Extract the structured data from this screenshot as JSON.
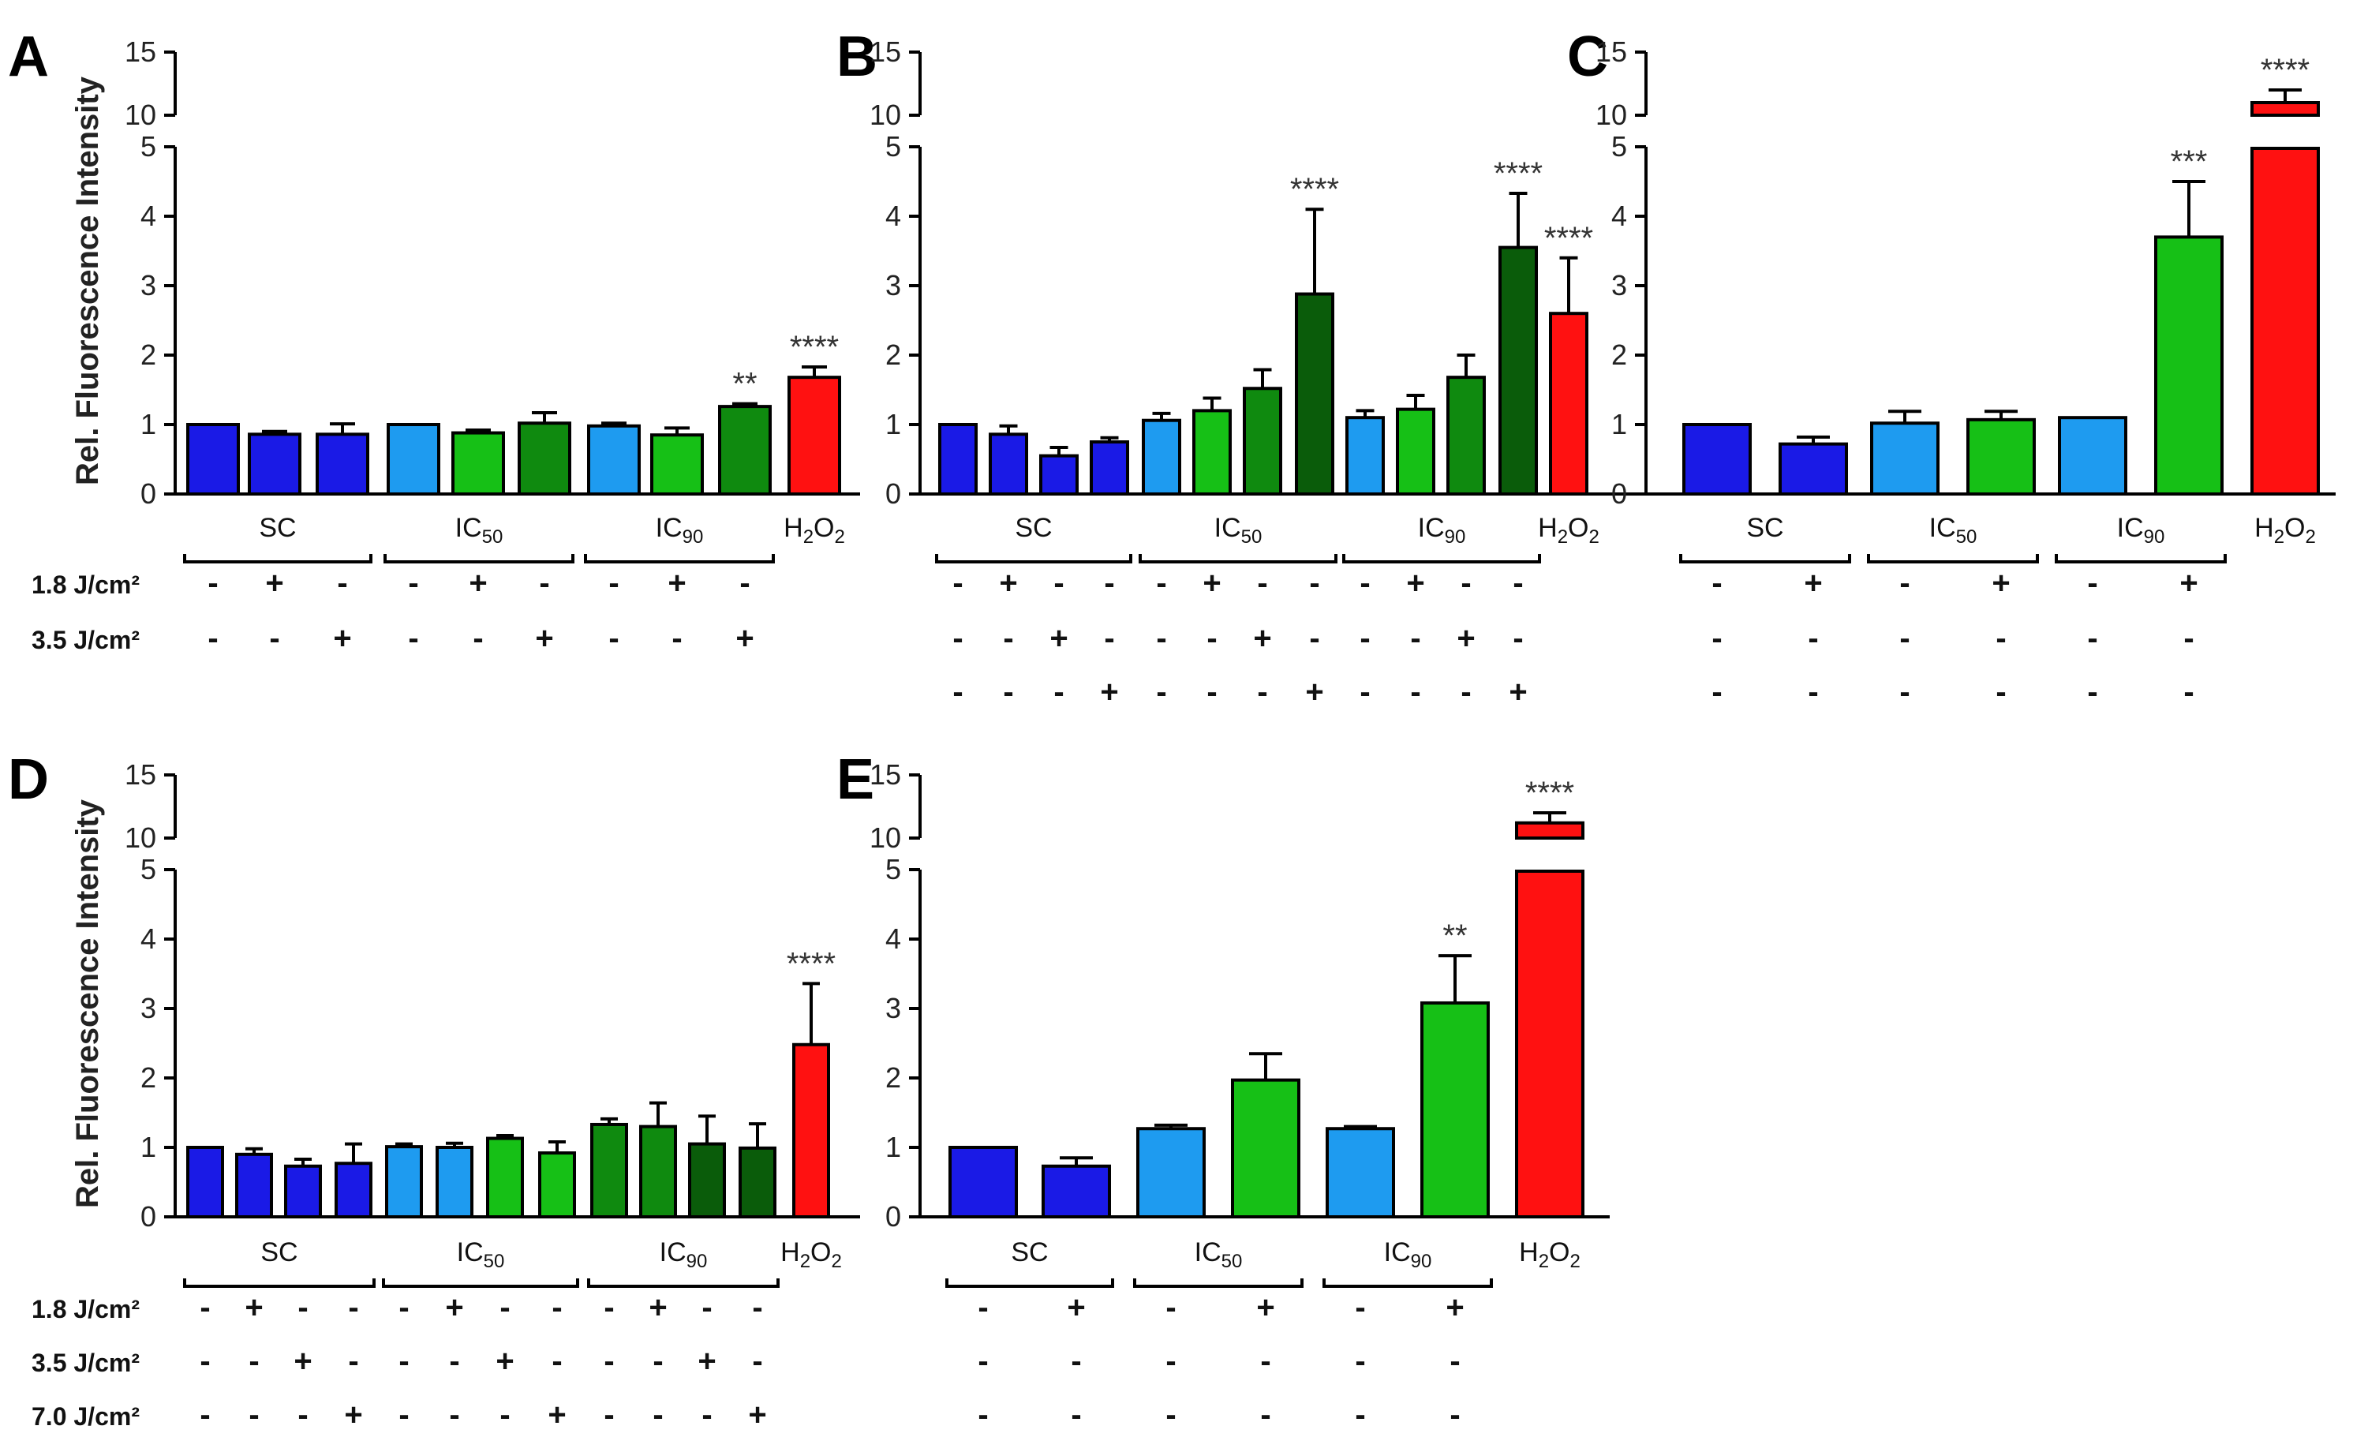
{
  "colors": {
    "sc": "#1a1ae6",
    "ic_light": "#1e9bf0",
    "green": "#16c016",
    "mid_green": "#0f8a0f",
    "dark_green": "#0a5c0a",
    "h2o2": "#ff1111"
  },
  "dose_labels": [
    "1.8 J/cm²",
    "3.5 J/cm²",
    "7.0 J/cm²"
  ],
  "chart_data": [
    {
      "panel": "A",
      "type": "bar",
      "ylabel": "Rel. Fluorescence Intensity",
      "ylim": [
        0,
        15
      ],
      "axis_break": [
        5,
        10
      ],
      "lower_ticks": [
        "0",
        "1",
        "2",
        "3",
        "4",
        "5"
      ],
      "upper_ticks": [
        "10",
        "15"
      ],
      "show_dose_labels": true,
      "groups": [
        {
          "label": "SC",
          "sub": ""
        },
        {
          "label": "IC",
          "sub": "50"
        },
        {
          "label": "IC",
          "sub": "90"
        },
        {
          "label": "H",
          "sub": "2",
          "label2": "O",
          "sub2": "2"
        }
      ],
      "bars": [
        {
          "group": 0,
          "value": 1.0,
          "error": 0.0,
          "color": "sc",
          "signs": [
            "-",
            "-"
          ]
        },
        {
          "group": 0,
          "value": 0.86,
          "error": 0.04,
          "color": "sc",
          "signs": [
            "+",
            "-"
          ]
        },
        {
          "group": 0,
          "value": 0.86,
          "error": 0.15,
          "color": "sc",
          "signs": [
            "-",
            "+"
          ]
        },
        {
          "group": 1,
          "value": 1.0,
          "error": 0.0,
          "color": "ic_light",
          "signs": [
            "-",
            "-"
          ]
        },
        {
          "group": 1,
          "value": 0.88,
          "error": 0.04,
          "color": "green",
          "signs": [
            "+",
            "-"
          ]
        },
        {
          "group": 1,
          "value": 1.02,
          "error": 0.15,
          "color": "mid_green",
          "signs": [
            "-",
            "+"
          ]
        },
        {
          "group": 2,
          "value": 0.98,
          "error": 0.04,
          "color": "ic_light",
          "signs": [
            "-",
            "-"
          ]
        },
        {
          "group": 2,
          "value": 0.85,
          "error": 0.1,
          "color": "green",
          "signs": [
            "+",
            "-"
          ]
        },
        {
          "group": 2,
          "value": 1.26,
          "error": 0.04,
          "color": "mid_green",
          "signs": [
            "-",
            "+"
          ],
          "sig": "**"
        },
        {
          "group": 3,
          "value": 1.68,
          "error": 0.15,
          "color": "h2o2",
          "sig": "****"
        }
      ]
    },
    {
      "panel": "B",
      "type": "bar",
      "ylabel": "",
      "ylim": [
        0,
        15
      ],
      "axis_break": [
        5,
        10
      ],
      "lower_ticks": [
        "0",
        "1",
        "2",
        "3",
        "4",
        "5"
      ],
      "upper_ticks": [
        "10",
        "15"
      ],
      "show_dose_labels": false,
      "groups": [
        {
          "label": "SC",
          "sub": ""
        },
        {
          "label": "IC",
          "sub": "50"
        },
        {
          "label": "IC",
          "sub": "90"
        },
        {
          "label": "H",
          "sub": "2",
          "label2": "O",
          "sub2": "2"
        }
      ],
      "bars": [
        {
          "group": 0,
          "value": 1.0,
          "error": 0.0,
          "color": "sc",
          "signs": [
            "-",
            "-",
            "-"
          ]
        },
        {
          "group": 0,
          "value": 0.86,
          "error": 0.12,
          "color": "sc",
          "signs": [
            "+",
            "-",
            "-"
          ]
        },
        {
          "group": 0,
          "value": 0.55,
          "error": 0.12,
          "color": "sc",
          "signs": [
            "-",
            "+",
            "-"
          ]
        },
        {
          "group": 0,
          "value": 0.75,
          "error": 0.06,
          "color": "sc",
          "signs": [
            "-",
            "-",
            "+"
          ]
        },
        {
          "group": 1,
          "value": 1.06,
          "error": 0.1,
          "color": "ic_light",
          "signs": [
            "-",
            "-",
            "-"
          ]
        },
        {
          "group": 1,
          "value": 1.2,
          "error": 0.18,
          "color": "green",
          "signs": [
            "+",
            "-",
            "-"
          ]
        },
        {
          "group": 1,
          "value": 1.52,
          "error": 0.27,
          "color": "mid_green",
          "signs": [
            "-",
            "+",
            "-"
          ]
        },
        {
          "group": 1,
          "value": 2.88,
          "error": 1.22,
          "color": "dark_green",
          "signs": [
            "-",
            "-",
            "+"
          ],
          "sig": "****"
        },
        {
          "group": 2,
          "value": 1.1,
          "error": 0.1,
          "color": "ic_light",
          "signs": [
            "-",
            "-",
            "-"
          ]
        },
        {
          "group": 2,
          "value": 1.22,
          "error": 0.2,
          "color": "green",
          "signs": [
            "+",
            "-",
            "-"
          ]
        },
        {
          "group": 2,
          "value": 1.68,
          "error": 0.32,
          "color": "mid_green",
          "signs": [
            "-",
            "+",
            "-"
          ]
        },
        {
          "group": 2,
          "value": 3.55,
          "error": 0.78,
          "color": "dark_green",
          "signs": [
            "-",
            "-",
            "+"
          ],
          "sig": "****"
        },
        {
          "group": 3,
          "value": 2.6,
          "error": 0.8,
          "color": "h2o2",
          "sig": "****"
        }
      ]
    },
    {
      "panel": "C",
      "type": "bar",
      "ylabel": "",
      "ylim": [
        0,
        15
      ],
      "axis_break": [
        5,
        10
      ],
      "lower_ticks": [
        "0",
        "1",
        "2",
        "3",
        "4",
        "5"
      ],
      "upper_ticks": [
        "10",
        "15"
      ],
      "show_dose_labels": false,
      "groups": [
        {
          "label": "SC",
          "sub": ""
        },
        {
          "label": "IC",
          "sub": "50"
        },
        {
          "label": "IC",
          "sub": "90"
        },
        {
          "label": "H",
          "sub": "2",
          "label2": "O",
          "sub2": "2"
        }
      ],
      "bars": [
        {
          "group": 0,
          "value": 1.0,
          "error": 0.0,
          "color": "sc",
          "signs": [
            "-",
            "-",
            "-"
          ]
        },
        {
          "group": 0,
          "value": 0.72,
          "error": 0.1,
          "color": "sc",
          "signs": [
            "+",
            "-",
            "-"
          ]
        },
        {
          "group": 1,
          "value": 1.02,
          "error": 0.17,
          "color": "ic_light",
          "signs": [
            "-",
            "-",
            "-"
          ]
        },
        {
          "group": 1,
          "value": 1.07,
          "error": 0.12,
          "color": "green",
          "signs": [
            "+",
            "-",
            "-"
          ]
        },
        {
          "group": 2,
          "value": 1.1,
          "error": 0.0,
          "color": "ic_light",
          "signs": [
            "-",
            "-",
            "-"
          ]
        },
        {
          "group": 2,
          "value": 3.7,
          "error": 0.8,
          "color": "green",
          "signs": [
            "+",
            "-",
            "-"
          ],
          "sig": "***"
        },
        {
          "group": 3,
          "value": 11.0,
          "error": 1.0,
          "color": "h2o2",
          "sig": "****"
        }
      ]
    },
    {
      "panel": "D",
      "type": "bar",
      "ylabel": "Rel. Fluorescence Intensity",
      "ylim": [
        0,
        15
      ],
      "axis_break": [
        5,
        10
      ],
      "lower_ticks": [
        "0",
        "1",
        "2",
        "3",
        "4",
        "5"
      ],
      "upper_ticks": [
        "10",
        "15"
      ],
      "show_dose_labels": true,
      "groups": [
        {
          "label": "SC",
          "sub": ""
        },
        {
          "label": "IC",
          "sub": "50"
        },
        {
          "label": "IC",
          "sub": "90"
        },
        {
          "label": "H",
          "sub": "2",
          "label2": "O",
          "sub2": "2"
        }
      ],
      "bars": [
        {
          "group": 0,
          "value": 1.0,
          "error": 0.0,
          "color": "sc",
          "signs": [
            "-",
            "-",
            "-"
          ]
        },
        {
          "group": 0,
          "value": 0.9,
          "error": 0.08,
          "color": "sc",
          "signs": [
            "+",
            "-",
            "-"
          ]
        },
        {
          "group": 0,
          "value": 0.73,
          "error": 0.1,
          "color": "sc",
          "signs": [
            "-",
            "+",
            "-"
          ]
        },
        {
          "group": 0,
          "value": 0.77,
          "error": 0.28,
          "color": "sc",
          "signs": [
            "-",
            "-",
            "+"
          ]
        },
        {
          "group": 1,
          "value": 1.01,
          "error": 0.04,
          "color": "ic_light",
          "signs": [
            "-",
            "-",
            "-"
          ]
        },
        {
          "group": 1,
          "value": 1.0,
          "error": 0.06,
          "color": "ic_light",
          "signs": [
            "+",
            "-",
            "-"
          ]
        },
        {
          "group": 1,
          "value": 1.13,
          "error": 0.04,
          "color": "green",
          "signs": [
            "-",
            "+",
            "-"
          ]
        },
        {
          "group": 1,
          "value": 0.92,
          "error": 0.16,
          "color": "green",
          "signs": [
            "-",
            "-",
            "+"
          ]
        },
        {
          "group": 2,
          "value": 1.33,
          "error": 0.08,
          "color": "mid_green",
          "signs": [
            "-",
            "-",
            "-"
          ]
        },
        {
          "group": 2,
          "value": 1.3,
          "error": 0.34,
          "color": "mid_green",
          "signs": [
            "+",
            "-",
            "-"
          ]
        },
        {
          "group": 2,
          "value": 1.05,
          "error": 0.4,
          "color": "dark_green",
          "signs": [
            "-",
            "+",
            "-"
          ]
        },
        {
          "group": 2,
          "value": 0.99,
          "error": 0.35,
          "color": "dark_green",
          "signs": [
            "-",
            "-",
            "+"
          ]
        },
        {
          "group": 3,
          "value": 2.48,
          "error": 0.88,
          "color": "h2o2",
          "sig": "****"
        }
      ]
    },
    {
      "panel": "E",
      "type": "bar",
      "ylabel": "",
      "ylim": [
        0,
        15
      ],
      "axis_break": [
        5,
        10
      ],
      "lower_ticks": [
        "0",
        "1",
        "2",
        "3",
        "4",
        "5"
      ],
      "upper_ticks": [
        "10",
        "15"
      ],
      "show_dose_labels": false,
      "groups": [
        {
          "label": "SC",
          "sub": ""
        },
        {
          "label": "IC",
          "sub": "50"
        },
        {
          "label": "IC",
          "sub": "90"
        },
        {
          "label": "H",
          "sub": "2",
          "label2": "O",
          "sub2": "2"
        }
      ],
      "bars": [
        {
          "group": 0,
          "value": 1.0,
          "error": 0.0,
          "color": "sc",
          "signs": [
            "-",
            "-",
            "-"
          ]
        },
        {
          "group": 0,
          "value": 0.73,
          "error": 0.12,
          "color": "sc",
          "signs": [
            "+",
            "-",
            "-"
          ]
        },
        {
          "group": 1,
          "value": 1.27,
          "error": 0.05,
          "color": "ic_light",
          "signs": [
            "-",
            "-",
            "-"
          ]
        },
        {
          "group": 1,
          "value": 1.97,
          "error": 0.38,
          "color": "green",
          "signs": [
            "+",
            "-",
            "-"
          ]
        },
        {
          "group": 2,
          "value": 1.27,
          "error": 0.03,
          "color": "ic_light",
          "signs": [
            "-",
            "-",
            "-"
          ]
        },
        {
          "group": 2,
          "value": 3.08,
          "error": 0.68,
          "color": "green",
          "signs": [
            "+",
            "-",
            "-"
          ],
          "sig": "**"
        },
        {
          "group": 3,
          "value": 11.2,
          "error": 0.8,
          "color": "h2o2",
          "sig": "****"
        }
      ]
    }
  ]
}
